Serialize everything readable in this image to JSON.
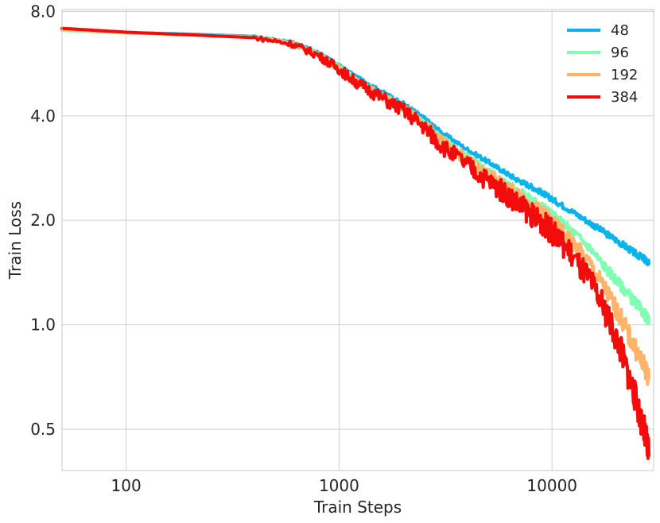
{
  "chart_data": {
    "type": "line",
    "xlabel": "Train Steps",
    "ylabel": "Train Loss",
    "xscale": "log",
    "yscale": "log",
    "xlim": [
      50,
      30000
    ],
    "ylim": [
      0.38,
      8.1
    ],
    "grid": true,
    "legend_position": "top-right",
    "x_ticks": [
      {
        "value": 100,
        "label": "100"
      },
      {
        "value": 1000,
        "label": "1000"
      },
      {
        "value": 10000,
        "label": "10000"
      }
    ],
    "y_ticks": [
      {
        "value": 0.5,
        "label": "0.5"
      },
      {
        "value": 1.0,
        "label": "1.0"
      },
      {
        "value": 2.0,
        "label": "2.0"
      },
      {
        "value": 4.0,
        "label": "4.0"
      },
      {
        "value": 8.0,
        "label": "8.0"
      }
    ],
    "x": [
      50,
      100,
      200,
      400,
      600,
      800,
      1000,
      1200,
      1500,
      2000,
      2500,
      3000,
      4000,
      5000,
      6000,
      7000,
      8000,
      9000,
      10000,
      12000,
      15000,
      18000,
      21000,
      24000,
      27000,
      28500
    ],
    "series": [
      {
        "name": "48",
        "color": "#0bb4e8",
        "values": [
          7.1,
          6.95,
          6.88,
          6.78,
          6.55,
          6.1,
          5.6,
          5.2,
          4.8,
          4.35,
          3.95,
          3.6,
          3.2,
          2.95,
          2.75,
          2.6,
          2.5,
          2.4,
          2.3,
          2.15,
          1.97,
          1.83,
          1.72,
          1.62,
          1.55,
          1.5
        ]
      },
      {
        "name": "96",
        "color": "#80ffb4",
        "values": [
          7.05,
          6.95,
          6.85,
          6.75,
          6.5,
          6.05,
          5.55,
          5.1,
          4.7,
          4.25,
          3.85,
          3.45,
          3.05,
          2.78,
          2.58,
          2.42,
          2.3,
          2.2,
          2.08,
          1.9,
          1.67,
          1.45,
          1.3,
          1.18,
          1.08,
          1.02
        ]
      },
      {
        "name": "192",
        "color": "#ffb36b",
        "values": [
          7.1,
          6.95,
          6.85,
          6.72,
          6.48,
          6.0,
          5.5,
          5.05,
          4.65,
          4.2,
          3.8,
          3.4,
          2.98,
          2.7,
          2.5,
          2.34,
          2.2,
          2.1,
          1.97,
          1.77,
          1.5,
          1.25,
          1.05,
          0.88,
          0.76,
          0.7
        ]
      },
      {
        "name": "384",
        "color": "#f20c0c",
        "values": [
          7.15,
          6.97,
          6.85,
          6.72,
          6.45,
          5.98,
          5.45,
          5.0,
          4.6,
          4.15,
          3.72,
          3.3,
          2.88,
          2.6,
          2.4,
          2.22,
          2.08,
          1.97,
          1.85,
          1.63,
          1.34,
          1.08,
          0.85,
          0.65,
          0.5,
          0.42
        ]
      }
    ]
  }
}
